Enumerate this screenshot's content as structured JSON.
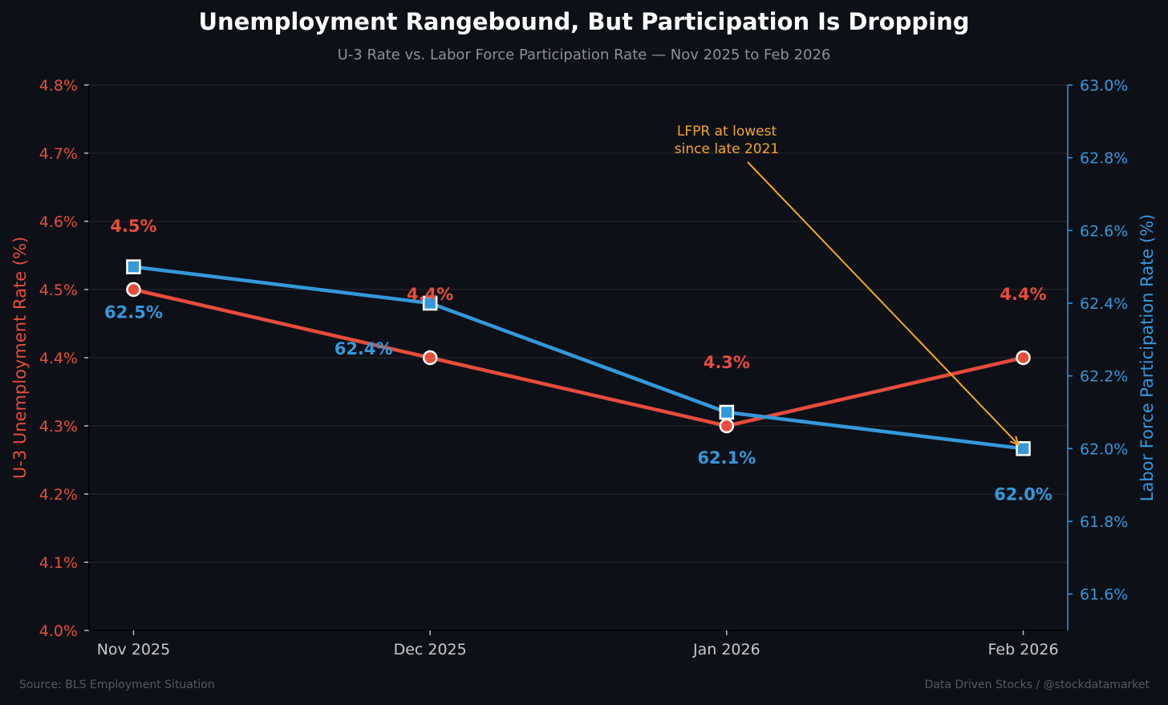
{
  "chart_data": {
    "type": "line",
    "title": "Unemployment Rangebound, But Participation Is Dropping",
    "subtitle": "U-3 Rate vs. Labor Force Participation Rate — Nov 2025 to Feb 2026",
    "categories": [
      "Nov 2025",
      "Dec 2025",
      "Jan 2026",
      "Feb 2026"
    ],
    "y_left": {
      "label": "U-3 Unemployment Rate (%)",
      "range": [
        4.0,
        4.8
      ],
      "ticks": [
        "4.0%",
        "4.1%",
        "4.2%",
        "4.3%",
        "4.4%",
        "4.5%",
        "4.6%",
        "4.7%",
        "4.8%"
      ]
    },
    "y_right": {
      "label": "Labor Force Participation Rate (%)",
      "range": [
        61.5,
        63.0
      ],
      "ticks": [
        "61.6%",
        "61.8%",
        "62.0%",
        "62.2%",
        "62.4%",
        "62.6%",
        "62.8%",
        "63.0%"
      ]
    },
    "series": [
      {
        "name": "U-3 Unemployment Rate",
        "axis": "left",
        "color": "#e74c3c",
        "marker": "circle",
        "values": [
          4.5,
          4.4,
          4.3,
          4.4
        ],
        "labels": [
          "4.5%",
          "4.4%",
          "4.3%",
          "4.4%"
        ]
      },
      {
        "name": "Labor Force Participation Rate",
        "axis": "right",
        "color": "#3498db",
        "marker": "square",
        "values": [
          62.5,
          62.4,
          62.1,
          62.0
        ],
        "labels": [
          "62.5%",
          "62.4%",
          "62.1%",
          "62.0%"
        ]
      }
    ],
    "annotation": {
      "line1": "LFPR at lowest",
      "line2": "since late 2021",
      "target_category": "Feb 2026",
      "target_value": 62.0,
      "color": "#f5a623"
    },
    "grid": true,
    "source": "Source: BLS Employment Situation",
    "credit": "Data Driven Stocks / @stockdatamarket"
  }
}
